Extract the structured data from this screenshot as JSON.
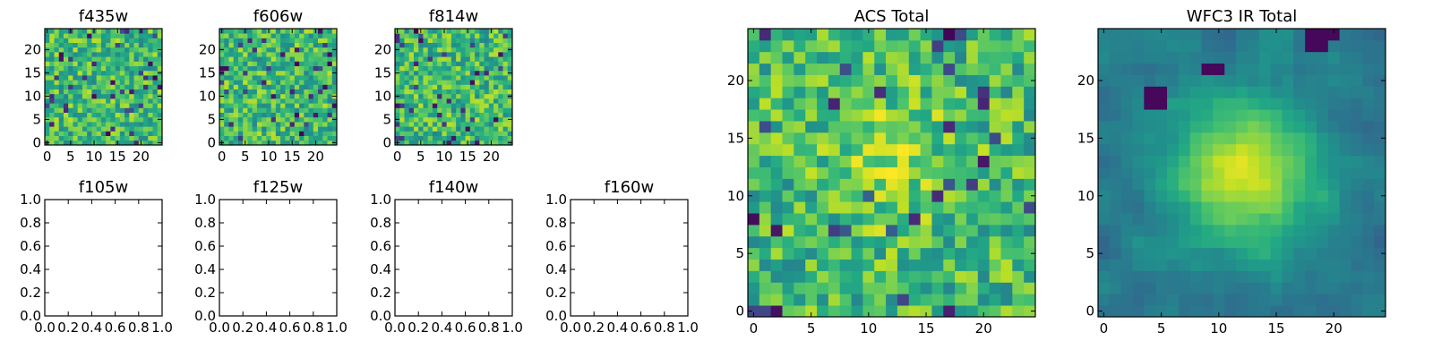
{
  "chart_data": [
    {
      "type": "heatmap",
      "title": "f435w",
      "grid": [
        25,
        25
      ],
      "xlim": [
        -0.5,
        24.5
      ],
      "ylim": [
        -0.5,
        24.5
      ],
      "xticks": [
        0,
        5,
        10,
        15,
        20
      ],
      "yticks": [
        0,
        5,
        10,
        15,
        20
      ],
      "colormap": "viridis",
      "texture": "noise",
      "seed": 3
    },
    {
      "type": "heatmap",
      "title": "f606w",
      "grid": [
        25,
        25
      ],
      "xlim": [
        -0.5,
        24.5
      ],
      "ylim": [
        -0.5,
        24.5
      ],
      "xticks": [
        0,
        5,
        10,
        15,
        20
      ],
      "yticks": [
        0,
        5,
        10,
        15,
        20
      ],
      "colormap": "viridis",
      "texture": "noise",
      "seed": 7
    },
    {
      "type": "heatmap",
      "title": "f814w",
      "grid": [
        25,
        25
      ],
      "xlim": [
        -0.5,
        24.5
      ],
      "ylim": [
        -0.5,
        24.5
      ],
      "xticks": [
        0,
        5,
        10,
        15,
        20
      ],
      "yticks": [
        0,
        5,
        10,
        15,
        20
      ],
      "colormap": "viridis",
      "texture": "noise",
      "seed": 11
    },
    {
      "type": "empty",
      "title": "f105w",
      "xlim": [
        0,
        1
      ],
      "ylim": [
        0,
        1
      ],
      "xticks": [
        "0.0",
        "0.2",
        "0.4",
        "0.6",
        "0.8",
        "1.0"
      ],
      "yticks": [
        "0.0",
        "0.2",
        "0.4",
        "0.6",
        "0.8",
        "1.0"
      ]
    },
    {
      "type": "empty",
      "title": "f125w",
      "xlim": [
        0,
        1
      ],
      "ylim": [
        0,
        1
      ],
      "xticks": [
        "0.0",
        "0.2",
        "0.4",
        "0.6",
        "0.8",
        "1.0"
      ],
      "yticks": [
        "0.0",
        "0.2",
        "0.4",
        "0.6",
        "0.8",
        "1.0"
      ]
    },
    {
      "type": "empty",
      "title": "f140w",
      "xlim": [
        0,
        1
      ],
      "ylim": [
        0,
        1
      ],
      "xticks": [
        "0.0",
        "0.2",
        "0.4",
        "0.6",
        "0.8",
        "1.0"
      ],
      "yticks": [
        "0.0",
        "0.2",
        "0.4",
        "0.6",
        "0.8",
        "1.0"
      ]
    },
    {
      "type": "empty",
      "title": "f160w",
      "xlim": [
        0,
        1
      ],
      "ylim": [
        0,
        1
      ],
      "xticks": [
        "0.0",
        "0.2",
        "0.4",
        "0.6",
        "0.8",
        "1.0"
      ],
      "yticks": [
        "0.0",
        "0.2",
        "0.4",
        "0.6",
        "0.8",
        "1.0"
      ]
    },
    {
      "type": "heatmap",
      "title": "ACS Total",
      "grid": [
        25,
        25
      ],
      "xlim": [
        -0.5,
        24.5
      ],
      "ylim": [
        -0.5,
        24.5
      ],
      "xticks": [
        0,
        5,
        10,
        15,
        20
      ],
      "yticks": [
        0,
        5,
        10,
        15,
        20
      ],
      "colormap": "viridis",
      "texture": "noise-with-central-source",
      "peak_center": [
        12,
        13
      ],
      "seed": 19
    },
    {
      "type": "heatmap",
      "title": "WFC3 IR Total",
      "grid": [
        25,
        25
      ],
      "xlim": [
        -0.5,
        24.5
      ],
      "ylim": [
        -0.5,
        24.5
      ],
      "xticks": [
        0,
        5,
        10,
        15,
        20
      ],
      "yticks": [
        0,
        5,
        10,
        15,
        20
      ],
      "colormap": "viridis",
      "texture": "smooth-central-source",
      "peak_center": [
        12,
        12
      ],
      "seed": 23
    }
  ]
}
